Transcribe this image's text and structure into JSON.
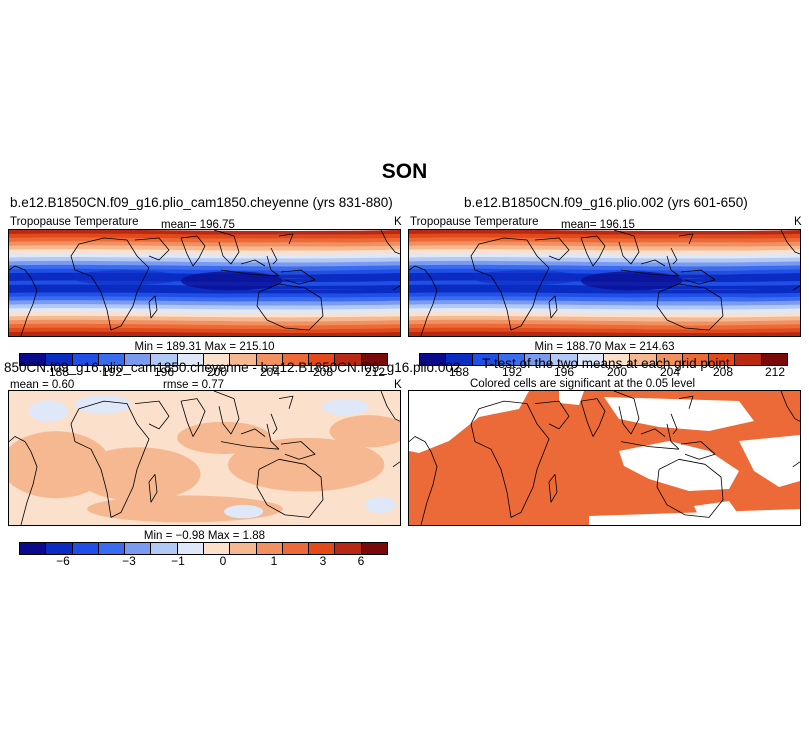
{
  "figure": {
    "title": "SON"
  },
  "colormap": {
    "main": [
      "#0a0a8c",
      "#0b2cc2",
      "#1f4fe6",
      "#3b6cf0",
      "#7b9bf0",
      "#b3c9f5",
      "#dfe8f8",
      "#fbe0cc",
      "#f6b890",
      "#f29060",
      "#ec6a38",
      "#e24a1a",
      "#b82812",
      "#7a0a0a"
    ],
    "significant": "#ec6a38"
  },
  "panels": {
    "p1": {
      "title": "b.e12.B1850CN.f09_g16.plio_cam1850.cheyenne (yrs 831-880)",
      "var": "Tropopause Temperature",
      "stat": "mean= 196.75",
      "unit": "K",
      "minmax": "Min = 189.31  Max = 215.10"
    },
    "p2": {
      "title": "b.e12.B1850CN.f09_g16.plio.002 (yrs 601-650)",
      "var": "Tropopause Temperature",
      "stat": "mean= 196.15",
      "unit": "K",
      "minmax": "Min = 188.70  Max = 214.63"
    },
    "p3": {
      "title": "850CN.f09_g16.plio_cam1850.cheyenne - b.e12.B1850CN.f09_g16.plio.002",
      "stat_mean": "mean =    0.60",
      "stat_rmse": "rmse =    0.77",
      "unit": "K",
      "minmax": "Min = −0.98  Max =    1.88"
    },
    "p4": {
      "title": "T-test of the two means at each grid point",
      "subtitle": "Colored cells are significant at the 0.05 level"
    }
  },
  "chart_data": [
    {
      "type": "heatmap",
      "title": "b.e12.B1850CN.f09_g16.plio_cam1850.cheyenne (yrs 831-880)",
      "variable": "Tropopause Temperature",
      "units": "K",
      "mean": 196.75,
      "min": 189.31,
      "max": 215.1,
      "colorbar_levels": [
        186,
        188,
        190,
        192,
        194,
        196,
        198,
        200,
        202,
        204,
        206,
        208,
        210,
        212,
        214
      ],
      "colorbar_tick_labels": [
        "188",
        "192",
        "196",
        "200",
        "204",
        "208",
        "212"
      ]
    },
    {
      "type": "heatmap",
      "title": "b.e12.B1850CN.f09_g16.plio.002 (yrs 601-650)",
      "variable": "Tropopause Temperature",
      "units": "K",
      "mean": 196.15,
      "min": 188.7,
      "max": 214.63,
      "colorbar_levels": [
        186,
        188,
        190,
        192,
        194,
        196,
        198,
        200,
        202,
        204,
        206,
        208,
        210,
        212,
        214
      ],
      "colorbar_tick_labels": [
        "188",
        "192",
        "196",
        "200",
        "204",
        "208",
        "212"
      ]
    },
    {
      "type": "heatmap",
      "title": "850CN.f09_g16.plio_cam1850.cheyenne - b.e12.B1850CN.f09_g16.plio.002",
      "units": "K",
      "mean": 0.6,
      "rmse": 0.77,
      "min": -0.98,
      "max": 1.88,
      "colorbar_tick_labels": [
        "−6",
        "−3",
        "−1",
        "0",
        "1",
        "3",
        "6"
      ]
    },
    {
      "type": "heatmap",
      "title": "T-test of the two means at each grid point",
      "subtitle": "Colored cells are significant at the 0.05 level",
      "significance_level": 0.05
    }
  ],
  "colorbar_ticks": {
    "top": [
      "188",
      "192",
      "196",
      "200",
      "204",
      "208",
      "212"
    ],
    "bottom": [
      "−6",
      "−3",
      "−1",
      "0",
      "1",
      "3",
      "6"
    ]
  }
}
